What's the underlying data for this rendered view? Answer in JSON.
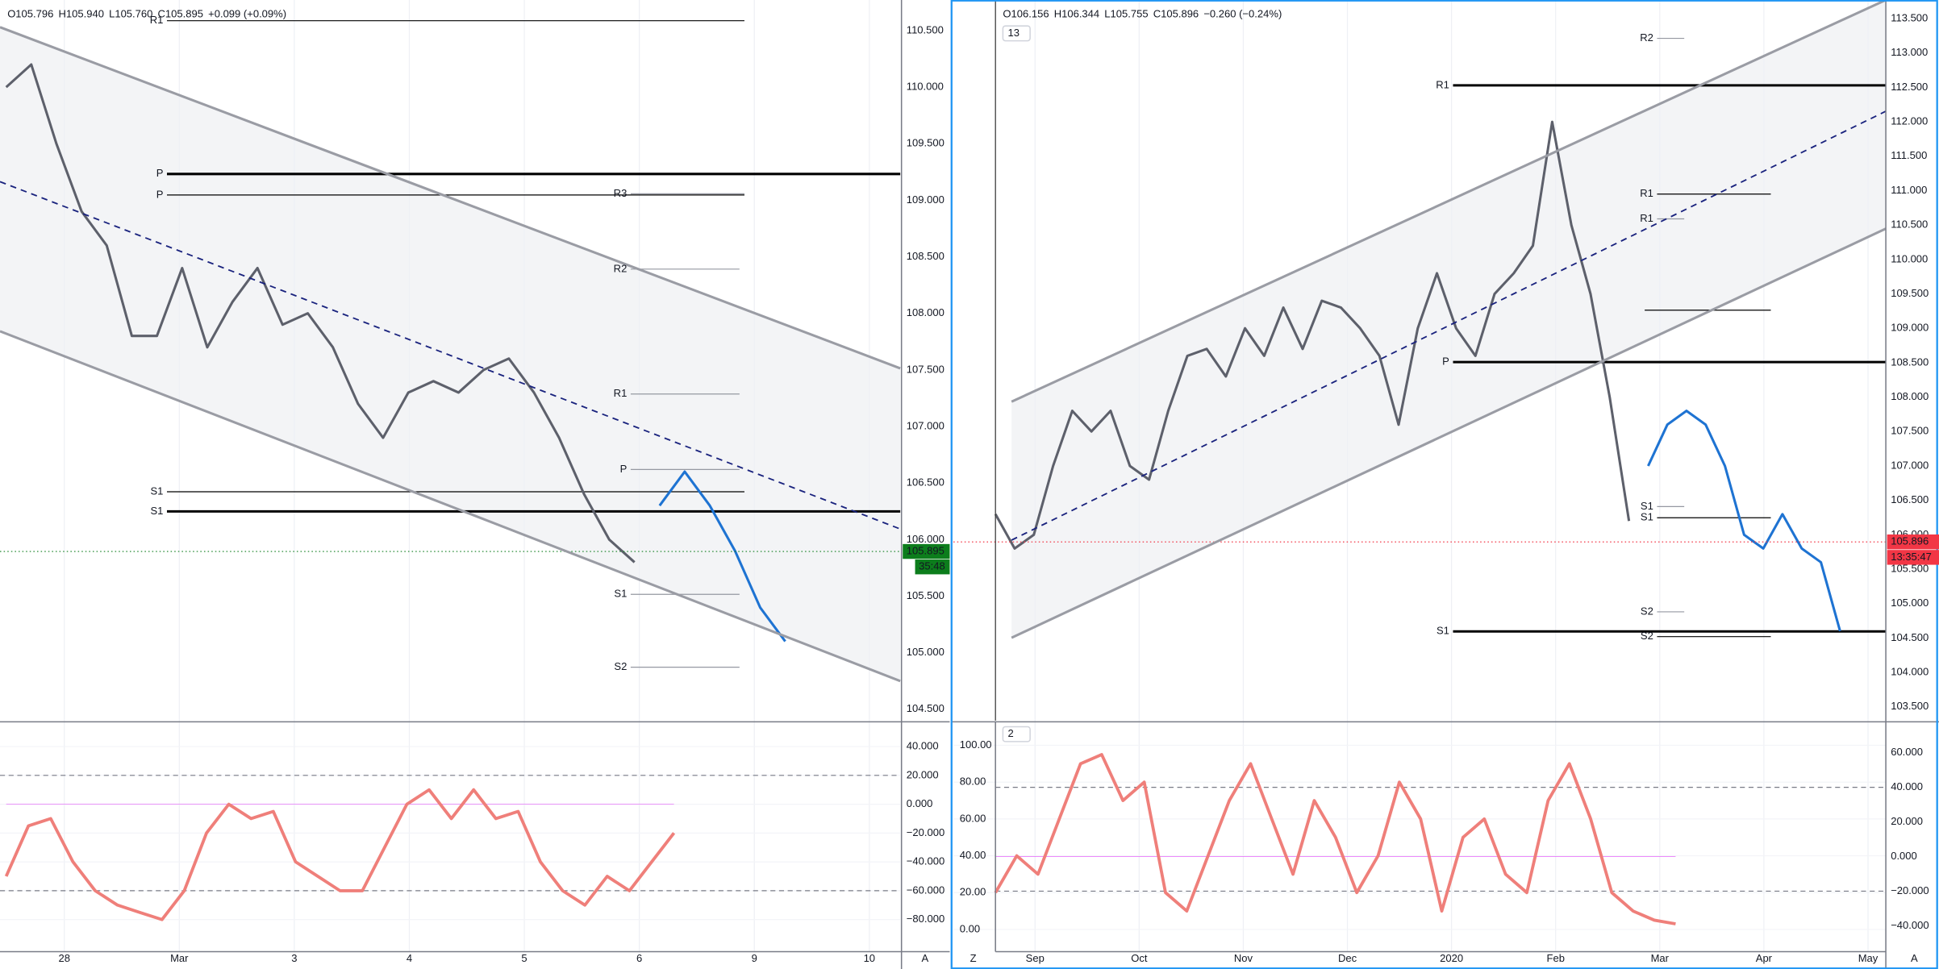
{
  "chart_data": [
    {
      "type": "line",
      "header": [
        "O105.796",
        "H105.940",
        "L105.760",
        "C105.895",
        "+0.099 (+0.09%)"
      ],
      "ylim": [
        104.4,
        110.77
      ],
      "yticks": [
        {
          "value": 104.5,
          "label": "104.500"
        },
        {
          "value": 105,
          "label": "105.000"
        },
        {
          "value": 105.5,
          "label": "105.500"
        },
        {
          "value": 106,
          "label": "106.000"
        },
        {
          "value": 106.5,
          "label": "106.500"
        },
        {
          "value": 107,
          "label": "107.000"
        },
        {
          "value": 107.5,
          "label": "107.500"
        },
        {
          "value": 108,
          "label": "108.000"
        },
        {
          "value": 108.5,
          "label": "108.500"
        },
        {
          "value": 109,
          "label": "109.000"
        },
        {
          "value": 109.5,
          "label": "109.500"
        },
        {
          "value": 110,
          "label": "110.000"
        },
        {
          "value": 110.5,
          "label": "110.500"
        }
      ],
      "xtick_labels": [
        "28",
        "Mar",
        "3",
        "4",
        "5",
        "6",
        "9",
        "10"
      ],
      "corner_buttons": [
        "A"
      ],
      "series": [
        {
          "color": "#5d606b",
          "values": [
            110.0,
            110.2,
            109.5,
            108.9,
            108.6,
            107.8,
            107.8,
            108.4,
            107.7,
            108.1,
            108.4,
            107.9,
            108.0,
            107.7,
            107.2,
            106.9,
            107.3,
            107.4,
            107.3,
            107.5,
            107.6,
            107.3,
            106.9,
            106.4,
            106.0,
            105.8,
            null,
            null,
            null,
            null,
            null,
            null
          ]
        },
        {
          "color": "#1e73d2",
          "values": [
            null,
            null,
            null,
            null,
            null,
            null,
            null,
            null,
            null,
            null,
            null,
            null,
            null,
            null,
            null,
            null,
            null,
            null,
            null,
            null,
            null,
            null,
            null,
            null,
            null,
            null,
            106.3,
            106.6,
            106.3,
            105.9,
            105.4,
            105.1
          ]
        }
      ],
      "levels": [
        {
          "label": "R1",
          "value": 110.587,
          "color": "#000000",
          "bold": false
        },
        {
          "label": "P",
          "value": 109.232,
          "color": "#000000",
          "bold": true
        },
        {
          "label": "P",
          "value": 109.046,
          "color": "#000000",
          "bold": false
        },
        {
          "label": "R3",
          "value": 109.057,
          "color": "#9598a1",
          "bold": false
        },
        {
          "label": "R2",
          "value": 108.391,
          "color": "#9598a1",
          "bold": false
        },
        {
          "label": "R1",
          "value": 107.287,
          "color": "#9598a1",
          "bold": false
        },
        {
          "label": "P",
          "value": 106.62,
          "color": "#9598a1",
          "bold": false
        },
        {
          "label": "S1",
          "value": 106.423,
          "color": "#000000",
          "bold": false
        },
        {
          "label": "S1",
          "value": 106.249,
          "color": "#000000",
          "bold": true
        },
        {
          "label": "S1",
          "value": 105.516,
          "color": "#9598a1",
          "bold": false
        },
        {
          "label": "S2",
          "value": 104.872,
          "color": "#9598a1",
          "bold": false
        }
      ],
      "price_tag": {
        "value": 105.895,
        "countdown": "35:48",
        "color": "#0c7d1c"
      },
      "oscillator": {
        "ylim": [
          -102.3,
          56.3
        ],
        "yticks": [
          {
            "value": 40,
            "label": "40.000"
          },
          {
            "value": 20,
            "label": "20.000"
          },
          {
            "value": 0,
            "label": "0.000"
          },
          {
            "value": -20,
            "label": "−20.000"
          },
          {
            "value": -40,
            "label": "−40.000"
          },
          {
            "value": -60,
            "label": "−60.000"
          },
          {
            "value": -80,
            "label": "−80.000"
          }
        ],
        "bands": [
          20,
          -60
        ],
        "midline": 0,
        "color": "#ef7f7a",
        "values": [
          -50,
          -15,
          -10,
          -40,
          -60,
          -70,
          -75,
          -80,
          -60,
          -20,
          0,
          -10,
          -5,
          -40,
          -50,
          -60,
          -60,
          -30,
          0,
          10,
          -10,
          10,
          -10,
          -5,
          -40,
          -60,
          -70,
          -50,
          -60,
          -40,
          -20
        ]
      }
    },
    {
      "type": "line",
      "header": [
        "O106.156",
        "H106.344",
        "L105.755",
        "C105.896",
        "−0.260 (−0.24%)"
      ],
      "collapse_buttons": [
        "13",
        "2"
      ],
      "ylim": [
        103.3,
        113.77
      ],
      "yticks": [
        {
          "value": 103.5,
          "label": "103.500"
        },
        {
          "value": 104,
          "label": "104.000"
        },
        {
          "value": 104.5,
          "label": "104.500"
        },
        {
          "value": 105,
          "label": "105.000"
        },
        {
          "value": 105.5,
          "label": "105.500"
        },
        {
          "value": 106,
          "label": "106.000"
        },
        {
          "value": 106.5,
          "label": "106.500"
        },
        {
          "value": 107,
          "label": "107.000"
        },
        {
          "value": 107.5,
          "label": "107.500"
        },
        {
          "value": 108,
          "label": "108.000"
        },
        {
          "value": 108.5,
          "label": "108.500"
        },
        {
          "value": 109,
          "label": "109.000"
        },
        {
          "value": 109.5,
          "label": "109.500"
        },
        {
          "value": 110,
          "label": "110.000"
        },
        {
          "value": 110.5,
          "label": "110.500"
        },
        {
          "value": 111,
          "label": "111.000"
        },
        {
          "value": 111.5,
          "label": "111.500"
        },
        {
          "value": 112,
          "label": "112.000"
        },
        {
          "value": 112.5,
          "label": "112.500"
        },
        {
          "value": 113,
          "label": "113.000"
        },
        {
          "value": 113.5,
          "label": "113.500"
        }
      ],
      "xtick_labels": [
        "Sep",
        "Oct",
        "Nov",
        "Dec",
        "2020",
        "Feb",
        "Mar",
        "Apr",
        "May"
      ],
      "corner_buttons": [
        "Z",
        "A"
      ],
      "series": [
        {
          "color": "#5d606b",
          "values": [
            106.3,
            105.8,
            106.0,
            107.0,
            107.8,
            107.5,
            107.8,
            107.0,
            106.8,
            107.8,
            108.6,
            108.7,
            108.3,
            109.0,
            108.6,
            109.3,
            108.7,
            109.4,
            109.3,
            109.0,
            108.6,
            107.6,
            109.0,
            109.8,
            109.0,
            108.6,
            109.5,
            109.8,
            110.2,
            112.0,
            110.5,
            109.5,
            108.0,
            106.2,
            null,
            null,
            null,
            null,
            null,
            null,
            null,
            null,
            null,
            null,
            null
          ]
        },
        {
          "color": "#1e73d2",
          "values": [
            null,
            null,
            null,
            null,
            null,
            null,
            null,
            null,
            null,
            null,
            null,
            null,
            null,
            null,
            null,
            null,
            null,
            null,
            null,
            null,
            null,
            null,
            null,
            null,
            null,
            null,
            null,
            null,
            null,
            null,
            null,
            null,
            null,
            null,
            107.0,
            107.6,
            107.8,
            107.6,
            107.0,
            106.0,
            105.8,
            106.3,
            105.8,
            105.6,
            104.6
          ]
        }
      ],
      "levels": [
        {
          "label": "R2",
          "value": 113.213,
          "color": "#9598a1",
          "bold": false
        },
        {
          "label": "R1",
          "value": 112.53,
          "color": "#000000",
          "bold": true
        },
        {
          "label": "R1",
          "value": 110.95,
          "color": "#000000",
          "bold": false
        },
        {
          "label": "R1",
          "value": 110.59,
          "color": "#9598a1",
          "bold": false
        },
        {
          "label": null,
          "value": 109.263,
          "color": "#000000",
          "bold": false
        },
        {
          "label": "P",
          "value": 108.509,
          "color": "#000000",
          "bold": true
        },
        {
          "label": "S1",
          "value": 106.41,
          "color": "#9598a1",
          "bold": false
        },
        {
          "label": "S1",
          "value": 106.247,
          "color": "#000000",
          "bold": false
        },
        {
          "label": "S2",
          "value": 104.88,
          "color": "#9598a1",
          "bold": false
        },
        {
          "label": "S1",
          "value": 104.595,
          "color": "#000000",
          "bold": true
        },
        {
          "label": "S2",
          "value": 104.52,
          "color": "#000000",
          "bold": false
        }
      ],
      "price_tag": {
        "value": 105.896,
        "countdown": "13:35:47",
        "color": "#f23645"
      },
      "oscillator": {
        "ylim": [
          -18.8,
          112.1
        ],
        "yticks": [
          {
            "value": 0,
            "label": "0.00"
          },
          {
            "value": 20,
            "label": "20.00"
          },
          {
            "value": 40,
            "label": "40.00"
          },
          {
            "value": 60,
            "label": "60.00"
          },
          {
            "value": 80,
            "label": "80.00"
          },
          {
            "value": 100,
            "label": "100.00"
          }
        ],
        "y2lim": [
          -62.1,
          77.1
        ],
        "y2ticks": [
          {
            "value": 60,
            "label": "60.000"
          },
          {
            "value": 40,
            "label": "40.000"
          },
          {
            "value": 20,
            "label": "20.000"
          },
          {
            "value": 0,
            "label": "0.000"
          },
          {
            "value": -20,
            "label": "−20.000"
          },
          {
            "value": -40,
            "label": "−40.000"
          }
        ],
        "bands_y2": [
          40,
          -20
        ],
        "midline_y2": 0,
        "color": "#ef7f7a",
        "values": [
          20,
          40,
          30,
          60,
          90,
          95,
          70,
          80,
          20,
          10,
          40,
          70,
          90,
          60,
          30,
          70,
          50,
          20,
          40,
          80,
          60,
          10,
          50,
          60,
          30,
          20,
          70,
          90,
          60,
          20,
          10,
          5,
          3
        ]
      }
    }
  ]
}
